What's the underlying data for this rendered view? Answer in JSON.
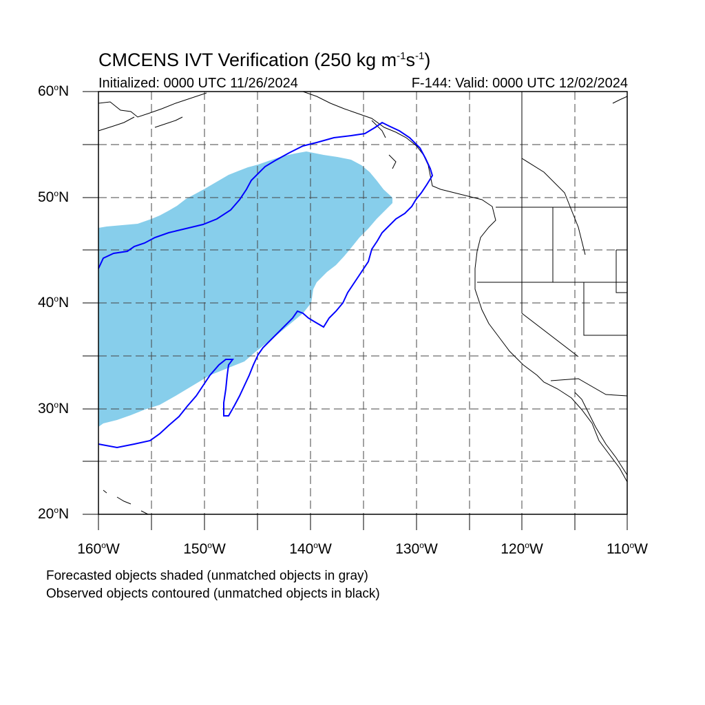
{
  "title": {
    "prefix": "CMCENS IVT Verification (250 kg m",
    "sup1": "-1",
    "mid": "s",
    "sup2": "-1",
    "suffix": ")"
  },
  "initialized": "Initialized: 0000 UTC 11/26/2024",
  "valid": "F-144: Valid: 0000 UTC 12/02/2024",
  "map": {
    "lon_range": [
      -160,
      -110
    ],
    "lat_range": [
      20,
      60
    ],
    "forecast_color": "#87ceeb",
    "observed_color": "#0000ff",
    "grid_style": "dashed"
  },
  "lat_labels": [
    {
      "lat": 60,
      "num": "60",
      "dir": "N"
    },
    {
      "lat": 50,
      "num": "50",
      "dir": "N"
    },
    {
      "lat": 40,
      "num": "40",
      "dir": "N"
    },
    {
      "lat": 30,
      "num": "30",
      "dir": "N"
    },
    {
      "lat": 20,
      "num": "20",
      "dir": "N"
    }
  ],
  "lon_labels": [
    {
      "lon": -160,
      "num": "160",
      "dir": "W"
    },
    {
      "lon": -150,
      "num": "150",
      "dir": "W"
    },
    {
      "lon": -140,
      "num": "140",
      "dir": "W"
    },
    {
      "lon": -130,
      "num": "130",
      "dir": "W"
    },
    {
      "lon": -120,
      "num": "120",
      "dir": "W"
    },
    {
      "lon": -110,
      "num": "110",
      "dir": "W"
    }
  ],
  "legend": {
    "line1": "Forecasted objects shaded (unmatched objects in gray)",
    "line2": "Observed objects contoured (unmatched objects in black)"
  }
}
